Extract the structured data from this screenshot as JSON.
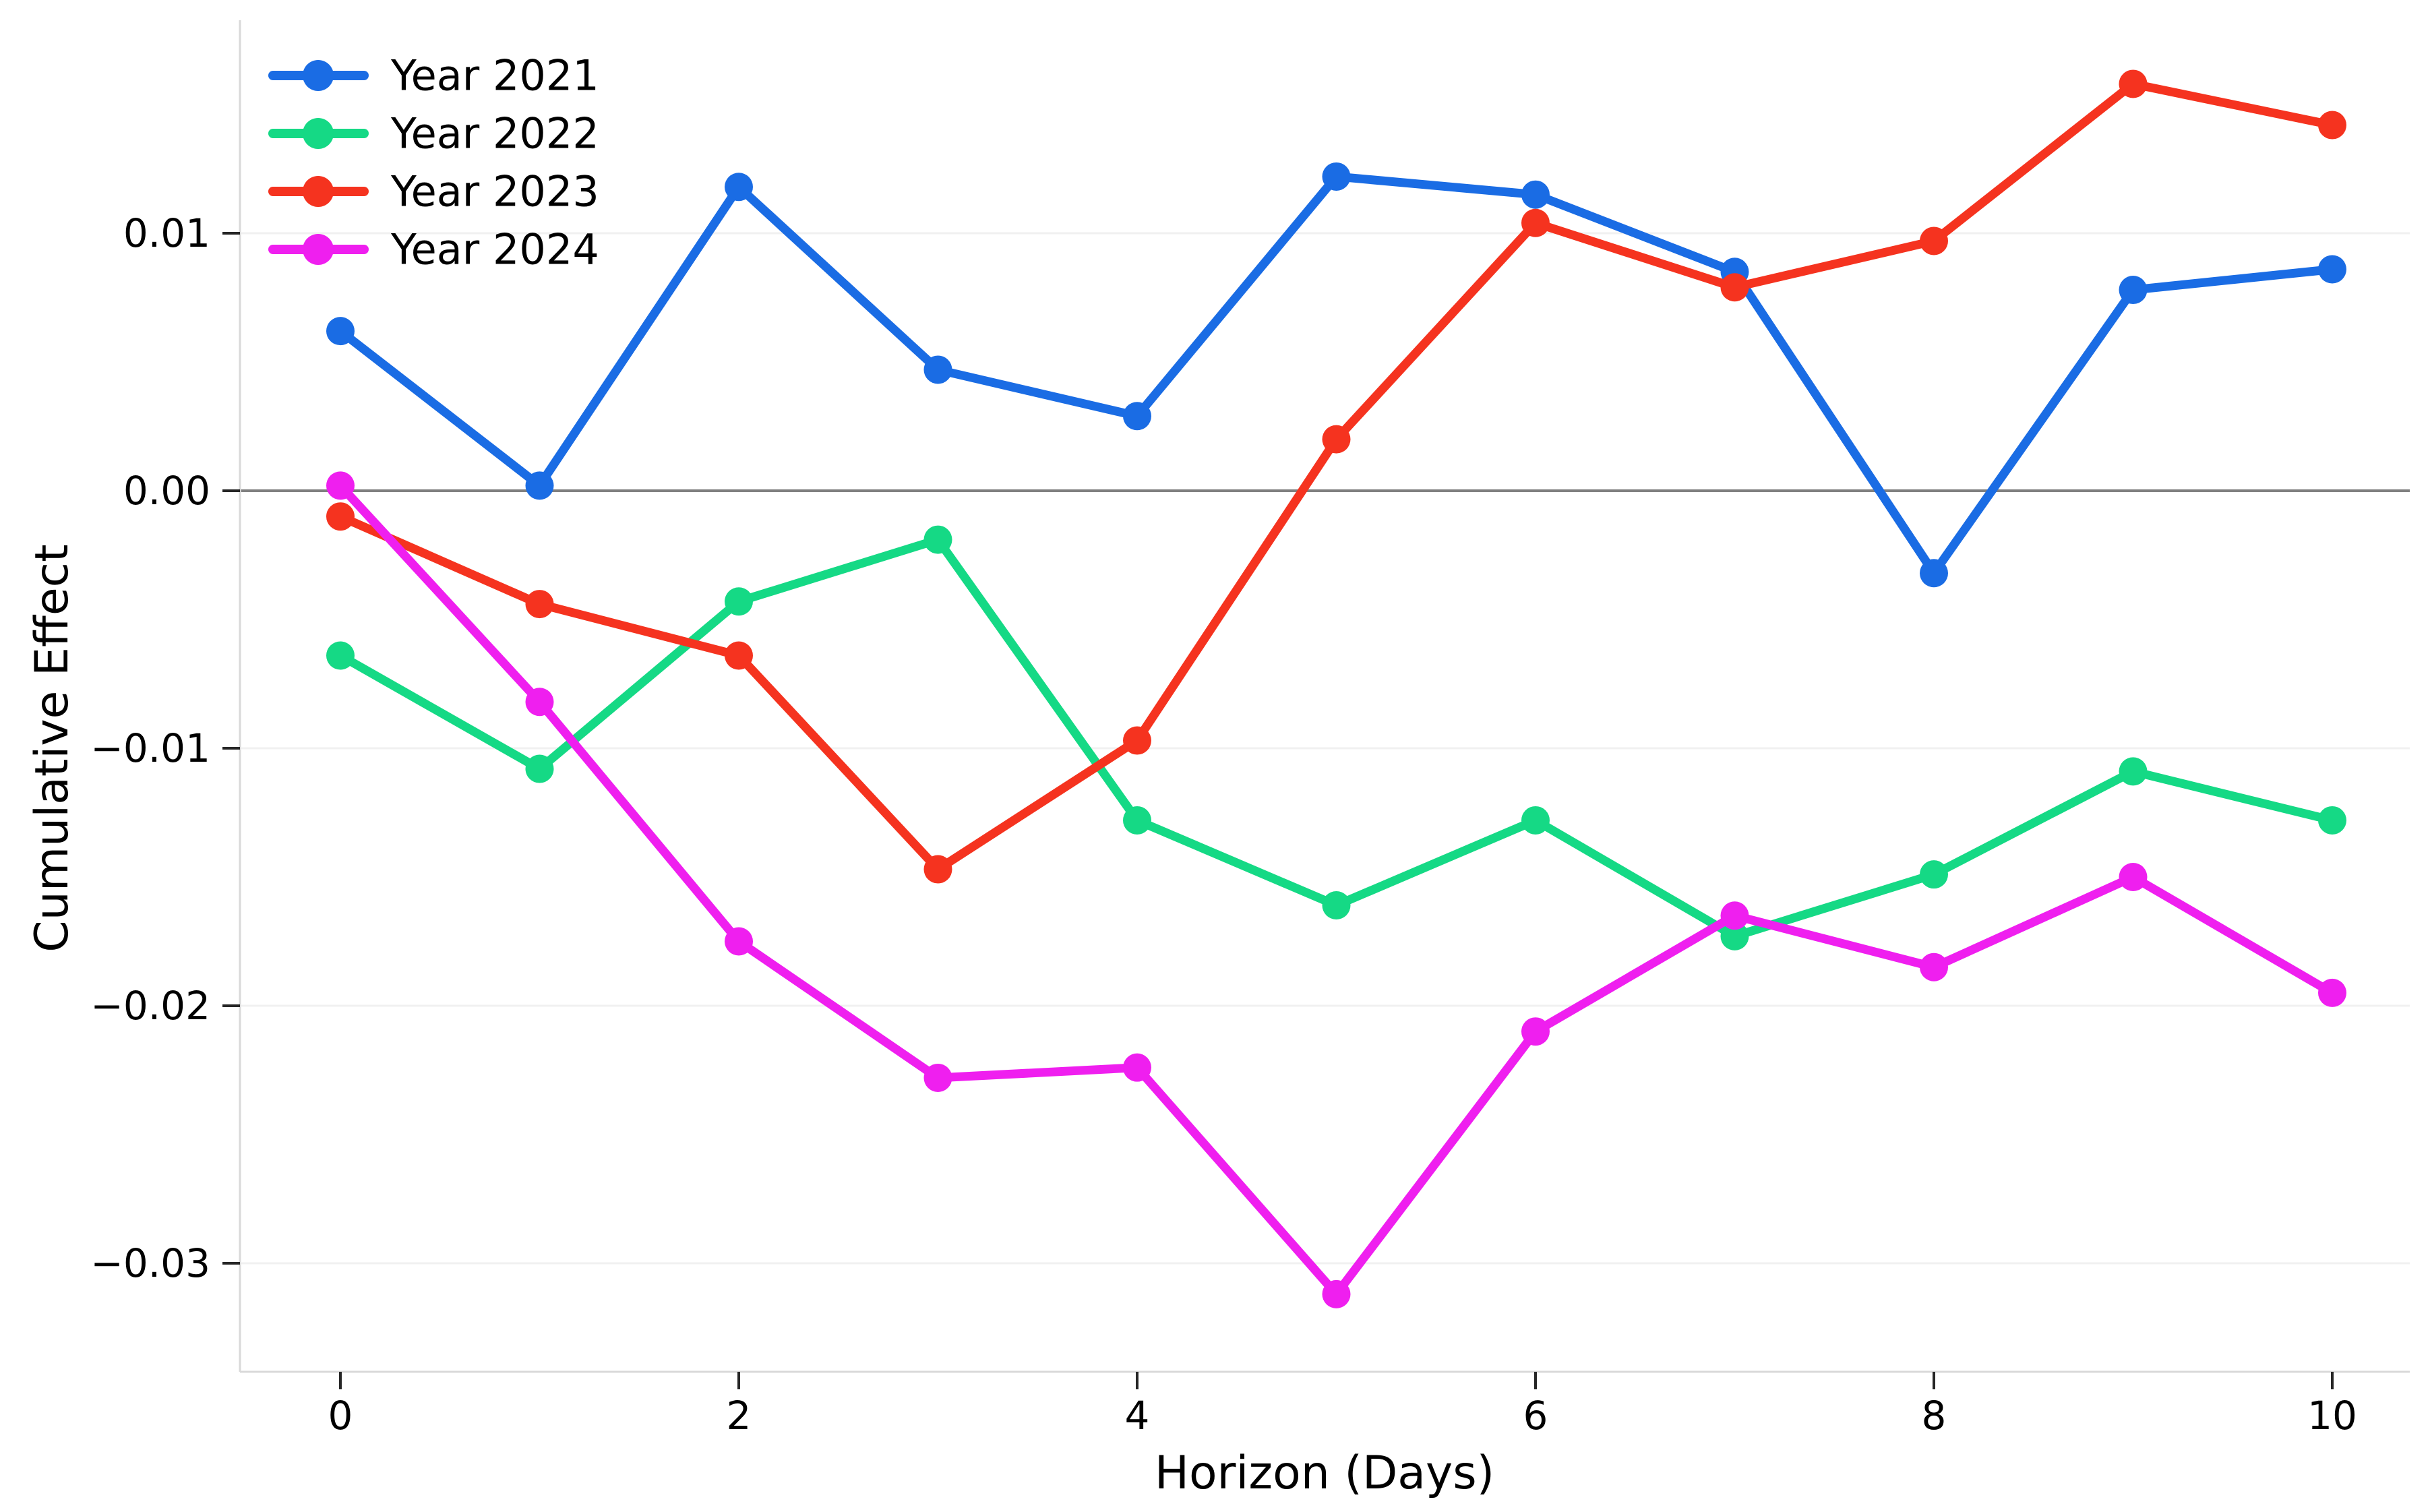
{
  "chart_data": {
    "type": "line",
    "x": [
      0,
      1,
      2,
      3,
      4,
      5,
      6,
      7,
      8,
      9,
      10
    ],
    "series": [
      {
        "name": "Year 2021",
        "color": "#1a6ce4",
        "values": [
          0.0062,
          0.0002,
          0.0118,
          0.0047,
          0.0029,
          0.0122,
          0.0115,
          0.0085,
          -0.0032,
          0.0078,
          0.0086
        ]
      },
      {
        "name": "Year 2022",
        "color": "#15d985",
        "values": [
          -0.0064,
          -0.0108,
          -0.0043,
          -0.0019,
          -0.0128,
          -0.0161,
          -0.0128,
          -0.0173,
          -0.0149,
          -0.0109,
          -0.0128
        ]
      },
      {
        "name": "Year 2023",
        "color": "#f5331f",
        "values": [
          -0.001,
          -0.0044,
          -0.0064,
          -0.0147,
          -0.0097,
          0.002,
          0.0104,
          0.0079,
          0.0097,
          0.0158,
          0.0142
        ]
      },
      {
        "name": "Year 2024",
        "color": "#ef1fef",
        "values": [
          0.0002,
          -0.0082,
          -0.0175,
          -0.0228,
          -0.0224,
          -0.0312,
          -0.021,
          -0.0165,
          -0.0185,
          -0.015,
          -0.0195
        ]
      }
    ],
    "title": "",
    "xlabel": "Horizon (Days)",
    "ylabel": "Cumulative Effect",
    "xticks": [
      0,
      2,
      4,
      6,
      8,
      10
    ],
    "xtick_labels": [
      "0",
      "2",
      "4",
      "6",
      "8",
      "10"
    ],
    "yticks": [
      0.01,
      0.0,
      -0.01,
      -0.02,
      -0.03
    ],
    "ytick_labels": [
      "0.01",
      "0.00",
      "−0.01",
      "−0.02",
      "−0.03"
    ],
    "ylim": [
      -0.0343,
      0.0183
    ],
    "xlim": [
      -0.5,
      10.5
    ],
    "grid": "horizontal",
    "zero_line": true,
    "legend_position": "upper-left",
    "colors": {
      "zero_line": "#808080",
      "gridline": "#f0f0f0",
      "spine": "#d9d9d9",
      "tick": "#262626",
      "text": "#000000"
    }
  }
}
